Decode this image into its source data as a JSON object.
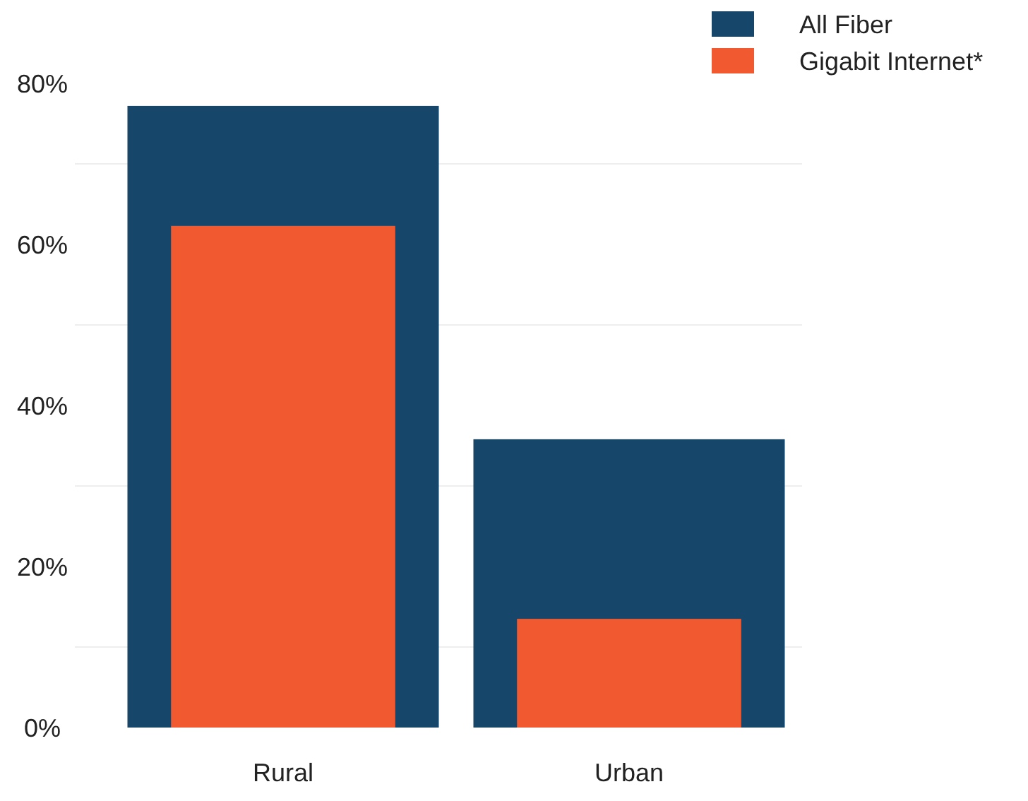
{
  "chart_data": {
    "type": "bar",
    "categories": [
      "Rural",
      "Urban"
    ],
    "series": [
      {
        "name": "All Fiber",
        "color": "#17466b",
        "values": [
          77.2,
          35.8
        ]
      },
      {
        "name": "Gigabit Internet*",
        "color": "#f15a30",
        "values": [
          62.3,
          13.5
        ]
      }
    ],
    "ylim": [
      0,
      80
    ],
    "yticks": [
      {
        "value": 0,
        "label": "0%"
      },
      {
        "value": 10,
        "label": null
      },
      {
        "value": 20,
        "label": "20%"
      },
      {
        "value": 30,
        "label": null
      },
      {
        "value": 40,
        "label": "40%"
      },
      {
        "value": 50,
        "label": null
      },
      {
        "value": 60,
        "label": "60%"
      },
      {
        "value": 70,
        "label": null
      },
      {
        "value": 80,
        "label": "80%"
      }
    ],
    "grid": true,
    "legend": "top right"
  }
}
